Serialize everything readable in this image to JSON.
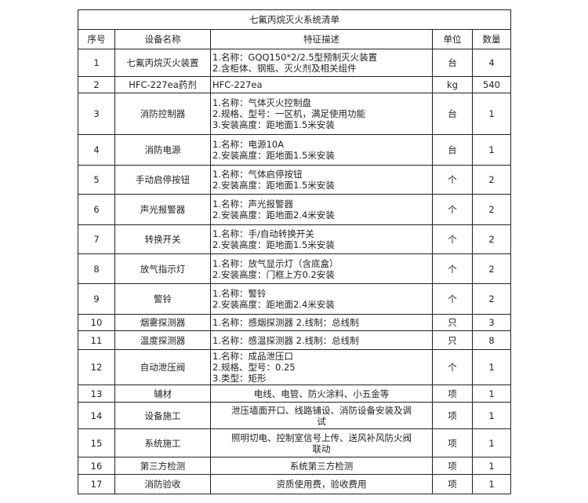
{
  "title": "七氟丙烷灭火系统清单",
  "headers": [
    "序号",
    "设备名称",
    "特征描述",
    "单位",
    "数量"
  ],
  "rows": [
    {
      "no": "1",
      "name": "七氟丙烷灭火装置",
      "desc": [
        "1.名称：GQQ150*2/2.5型预制灭火装置",
        "2.含柜体、钢瓶、灭火剂及相关组件"
      ],
      "align": "left",
      "unit": "台",
      "qty": "4"
    },
    {
      "no": "2",
      "name": "HFC-227ea药剂",
      "desc": [
        "HFC-227ea"
      ],
      "align": "left",
      "unit": "kg",
      "qty": "540"
    },
    {
      "no": "3",
      "name": "消防控制器",
      "desc": [
        "1.名称：气体灭火控制盘",
        "2.规格、型号：一区机，满足使用功能",
        "3.安装高度：距地面1.5米安装"
      ],
      "align": "left",
      "unit": "台",
      "qty": "1"
    },
    {
      "no": "4",
      "name": "消防电源",
      "desc": [
        "1.名称：电源10A",
        "2.安装高度：距地面1.5米安装"
      ],
      "align": "left",
      "unit": "台",
      "qty": "1"
    },
    {
      "no": "5",
      "name": "手动启停按钮",
      "desc": [
        "1.名称：气体启停按钮",
        "2.安装高度：距地面1.5米安装"
      ],
      "align": "left",
      "unit": "个",
      "qty": "2"
    },
    {
      "no": "6",
      "name": "声光报警器",
      "desc": [
        "1.名称：声光报警器",
        "2.安装高度：距地面2.4米安装"
      ],
      "align": "left",
      "unit": "个",
      "qty": "2"
    },
    {
      "no": "7",
      "name": "转换开关",
      "desc": [
        "1.名称：手/自动转换开关",
        "2.安装高度：距地面1.5米安装"
      ],
      "align": "left",
      "unit": "个",
      "qty": "2"
    },
    {
      "no": "8",
      "name": "放气指示灯",
      "desc": [
        "1.名称：放气显示灯（含底盒）",
        "2.安装高度：门框上方0.2安装"
      ],
      "align": "left",
      "unit": "个",
      "qty": "2"
    },
    {
      "no": "9",
      "name": "警铃",
      "desc": [
        "1.名称：警铃",
        "2.安装高度：距地面2.4米安装"
      ],
      "align": "left",
      "unit": "个",
      "qty": "2"
    },
    {
      "no": "10",
      "name": "烟雾探测器",
      "desc": [
        "1.名称：感烟探测器 2.线制：总线制"
      ],
      "align": "left",
      "unit": "只",
      "qty": "3"
    },
    {
      "no": "11",
      "name": "温度探测器",
      "desc": [
        "1.名称：感温探测器 2.线制：总线制"
      ],
      "align": "left",
      "unit": "只",
      "qty": "8"
    },
    {
      "no": "12",
      "name": "自动泄压阀",
      "desc": [
        "1.名称：成品泄压口",
        "2.规格、型号：0.25",
        "3.类型：矩形"
      ],
      "align": "left",
      "unit": "个",
      "qty": "1"
    },
    {
      "no": "13",
      "name": "辅材",
      "desc": [
        "电线、电管、防火涂料、小五金等"
      ],
      "align": "center",
      "unit": "项",
      "qty": "1"
    },
    {
      "no": "14",
      "name": "设备施工",
      "desc": [
        "泄压墙面开口、线路铺设、消防设备安装及调",
        "试"
      ],
      "align": "center",
      "unit": "项",
      "qty": "1"
    },
    {
      "no": "15",
      "name": "系统施工",
      "desc": [
        "照明切电、控制室信号上传、送风补风防火阀",
        "联动"
      ],
      "align": "center",
      "unit": "项",
      "qty": "1"
    },
    {
      "no": "16",
      "name": "第三方检测",
      "desc": [
        "系统第三方检测"
      ],
      "align": "center",
      "unit": "项",
      "qty": "1"
    },
    {
      "no": "17",
      "name": "消防验收",
      "desc": [
        "资质使用费，验收费用"
      ],
      "align": "center",
      "unit": "项",
      "qty": "1"
    }
  ]
}
